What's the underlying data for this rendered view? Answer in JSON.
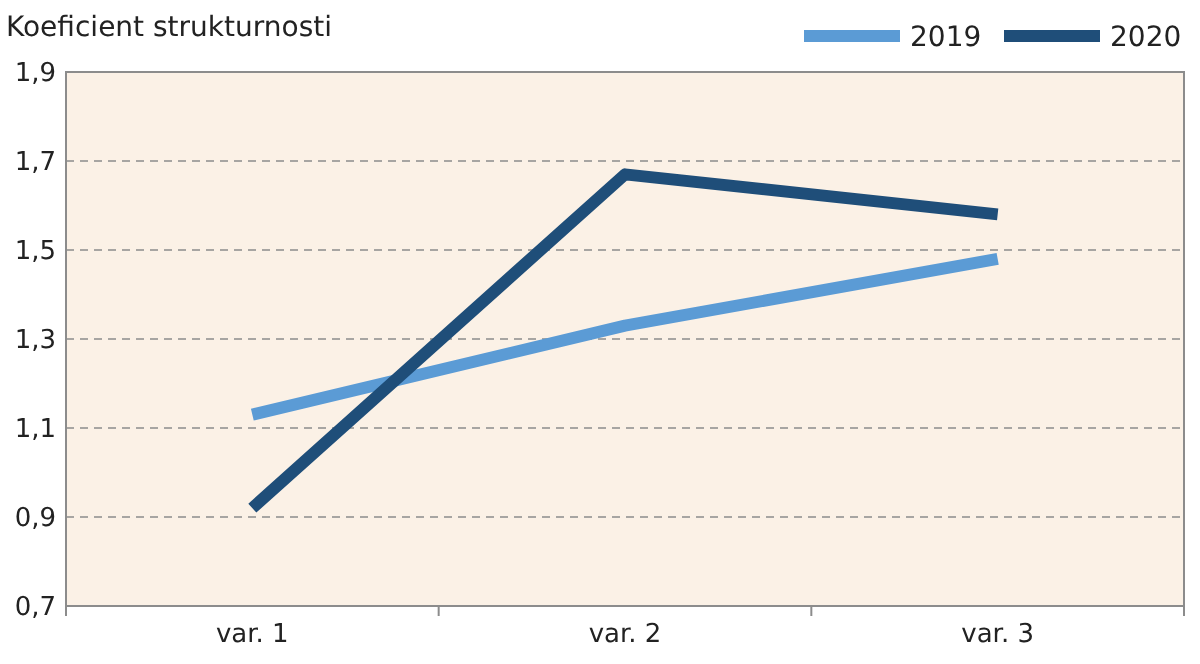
{
  "chart_data": {
    "type": "line",
    "ylabel": "Koeficient strukturnosti",
    "categories": [
      "var. 1",
      "var. 2",
      "var. 3"
    ],
    "series": [
      {
        "name": "2019",
        "color": "#5b9bd5",
        "values": [
          1.13,
          1.33,
          1.48
        ]
      },
      {
        "name": "2020",
        "color": "#1f4e79",
        "values": [
          0.92,
          1.67,
          1.58
        ]
      }
    ],
    "ylim": [
      0.7,
      1.9
    ],
    "yticks": [
      {
        "value": 0.7,
        "label": "0,7"
      },
      {
        "value": 0.9,
        "label": "0,9"
      },
      {
        "value": 1.1,
        "label": "1,1"
      },
      {
        "value": 1.3,
        "label": "1,3"
      },
      {
        "value": 1.5,
        "label": "1,5"
      },
      {
        "value": 1.7,
        "label": "1,7"
      },
      {
        "value": 1.9,
        "label": "1,9"
      }
    ],
    "grid": "y",
    "legend": "top right",
    "marker": "none",
    "line_style": "solid"
  }
}
